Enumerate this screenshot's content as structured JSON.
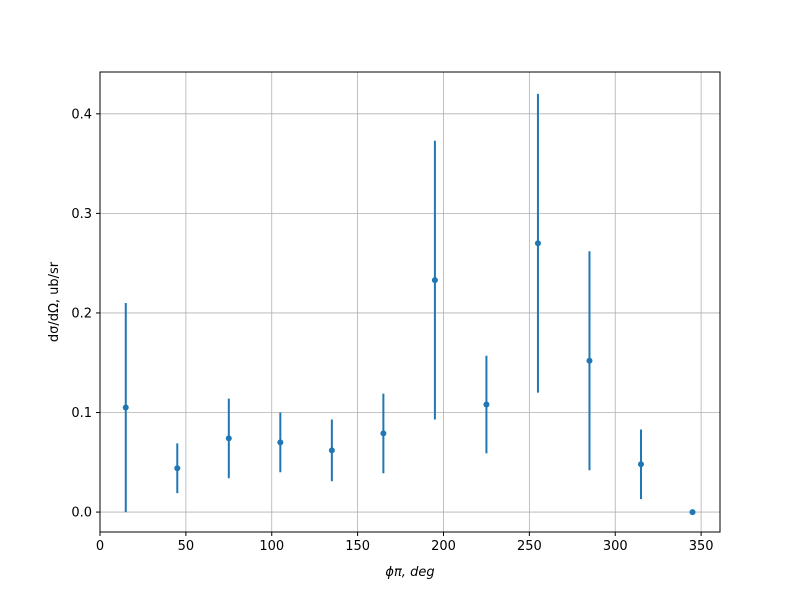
{
  "chart_data": {
    "type": "errorbar",
    "xlabel": "ϕπ, deg",
    "ylabel": "dσ/dΩ, ub/sr",
    "x": [
      15,
      45,
      75,
      105,
      135,
      165,
      195,
      225,
      255,
      285,
      315,
      345
    ],
    "series": [
      {
        "color": "#1f77b4",
        "values": [
          0.105,
          0.044,
          0.074,
          0.07,
          0.062,
          0.079,
          0.233,
          0.108,
          0.27,
          0.152,
          0.048,
          0.0
        ],
        "errors": [
          0.105,
          0.025,
          0.04,
          0.03,
          0.031,
          0.04,
          0.14,
          0.049,
          0.15,
          0.11,
          0.035,
          0.0
        ]
      }
    ],
    "xlim": [
      0,
      361
    ],
    "ylim": [
      -0.02,
      0.442
    ],
    "xticks": [
      0,
      50,
      100,
      150,
      200,
      250,
      300,
      350
    ],
    "yticks": [
      {
        "value": 0,
        "label": "0.0"
      },
      0.1,
      0.2,
      0.3,
      0.4
    ],
    "grid": true
  }
}
